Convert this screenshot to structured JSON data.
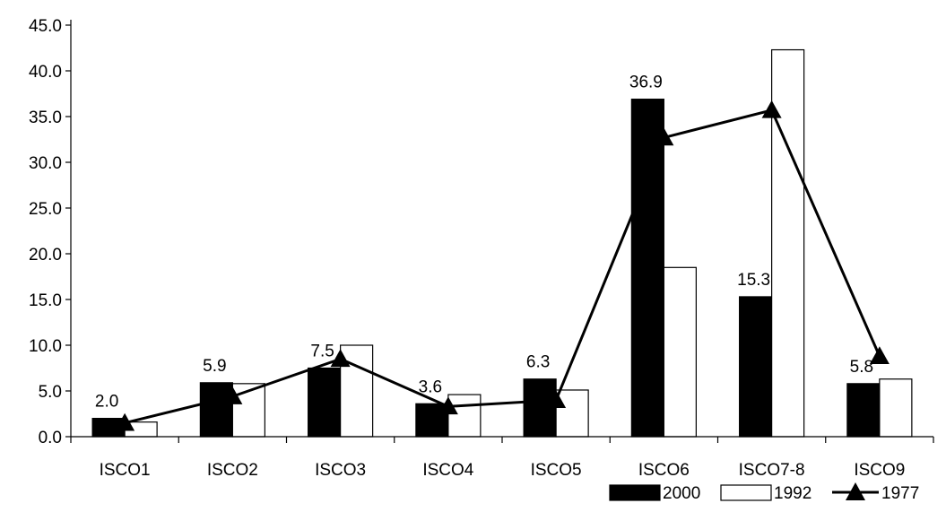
{
  "chart_data": {
    "type": "bar",
    "title": "",
    "xlabel": "",
    "ylabel": "",
    "categories": [
      "ISCO1",
      "ISCO2",
      "ISCO3",
      "ISCO4",
      "ISCO5",
      "ISCO6",
      "ISCO7-8",
      "ISCO9"
    ],
    "series": [
      {
        "name": "2000",
        "type": "bar",
        "color": "#000000",
        "values": [
          2.0,
          5.9,
          7.5,
          3.6,
          6.3,
          36.9,
          15.3,
          5.8
        ]
      },
      {
        "name": "1992",
        "type": "bar",
        "color": "#ffffff",
        "values": [
          1.6,
          5.8,
          10.0,
          4.6,
          5.1,
          18.5,
          42.3,
          6.3
        ]
      },
      {
        "name": "1977",
        "type": "line",
        "marker": "triangle",
        "color": "#000000",
        "values": [
          1.5,
          4.4,
          8.5,
          3.3,
          4.0,
          32.7,
          35.7,
          8.8
        ]
      }
    ],
    "data_labels": [
      "2.0",
      "5.9",
      "7.5",
      "3.6",
      "6.3",
      "36.9",
      "15.3",
      "5.8"
    ],
    "ylim": [
      0,
      45
    ],
    "yticks": [
      "0.0",
      "5.0",
      "10.0",
      "15.0",
      "20.0",
      "25.0",
      "30.0",
      "35.0",
      "40.0",
      "45.0"
    ],
    "grid": false,
    "legend_position": "bottom-right"
  }
}
